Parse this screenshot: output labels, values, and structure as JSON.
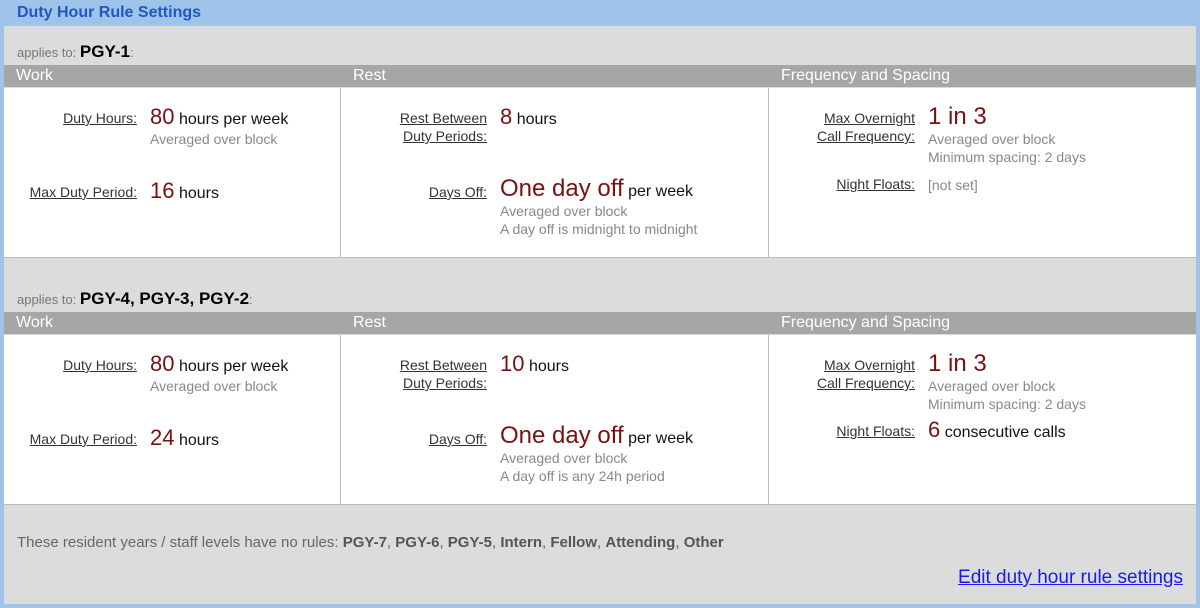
{
  "title": "Duty Hour Rule Settings",
  "columns": [
    "Work",
    "Rest",
    "Frequency and Spacing"
  ],
  "applies_label": "applies to:",
  "rules": [
    {
      "applies_to": "PGY-1",
      "duty_hours": {
        "label": "Duty Hours:",
        "value": "80",
        "unit": "hours per week",
        "note": "Averaged over block"
      },
      "max_duty": {
        "label": "Max Duty Period:",
        "value": "16",
        "unit": "hours"
      },
      "rest_between": {
        "label1": "Rest Between",
        "label2": "Duty Periods:",
        "value": "8",
        "unit": "hours"
      },
      "days_off": {
        "label": "Days Off:",
        "value": "One day off",
        "unit": "per week",
        "note1": "Averaged over block",
        "note2": "A day off is midnight to midnight"
      },
      "overnight": {
        "label1": "Max Overnight",
        "label2": "Call Frequency:",
        "value": "1 in 3",
        "note1": "Averaged over block",
        "note2": "Minimum spacing: 2 days"
      },
      "night_floats": {
        "label": "Night Floats:",
        "value": "",
        "unit": "",
        "notset": "[not set]"
      }
    },
    {
      "applies_to": "PGY-4, PGY-3, PGY-2",
      "duty_hours": {
        "label": "Duty Hours:",
        "value": "80",
        "unit": "hours per week",
        "note": "Averaged over block"
      },
      "max_duty": {
        "label": "Max Duty Period:",
        "value": "24",
        "unit": "hours"
      },
      "rest_between": {
        "label1": "Rest Between",
        "label2": "Duty Periods:",
        "value": "10",
        "unit": "hours"
      },
      "days_off": {
        "label": "Days Off:",
        "value": "One day off",
        "unit": "per week",
        "note1": "Averaged over block",
        "note2": "A day off is any 24h period"
      },
      "overnight": {
        "label1": "Max Overnight",
        "label2": "Call Frequency:",
        "value": "1 in 3",
        "note1": "Averaged over block",
        "note2": "Minimum spacing: 2 days"
      },
      "night_floats": {
        "label": "Night Floats:",
        "value": "6",
        "unit": "consecutive calls",
        "notset": ""
      }
    }
  ],
  "footer": {
    "text": "These resident years / staff levels have no rules:",
    "levels": [
      "PGY-7",
      "PGY-6",
      "PGY-5",
      "Intern",
      "Fellow",
      "Attending",
      "Other"
    ]
  },
  "edit_link": "Edit duty hour rule settings"
}
